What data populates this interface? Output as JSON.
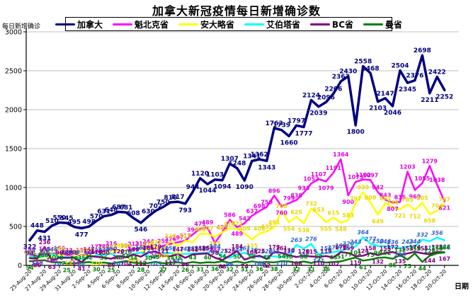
{
  "title": "加拿大新冠疫情每日新增确诊数",
  "y_axis_unit_label": "每日新增确诊",
  "x_axis_title": "日期",
  "chart_data": {
    "type": "line",
    "title": "加拿大新冠疫情每日新增确诊数",
    "xlabel": "日期",
    "ylabel": "每日新增确诊",
    "ylim": [
      0,
      3000
    ],
    "y_ticks": [
      0,
      500,
      1000,
      1500,
      2000,
      2500,
      3000
    ],
    "grid": "horizontal",
    "legend_position": "top",
    "points_note": "57 daily points from 25-Aug-20 to 20-Oct-20; every 2nd point has an x tick label; every point carries a value data label",
    "x_tick_labels": [
      "25-Aug-20",
      "27-Aug-20",
      "29-Aug-20",
      "31-Aug-20",
      "2-Sep-20",
      "4-Sep-20",
      "6-Sep-20",
      "8-Sep-20",
      "10-Sep-20",
      "12-Sep-20",
      "14-Sep-20",
      "16-Sep-20",
      "18-Sep-20",
      "20-Sep-20",
      "22-Sep-20",
      "24-Sep-20",
      "26-Sep-20",
      "28-Sep-20",
      "30-Sep-20",
      "2-Oct-20",
      "4-Oct-20",
      "6-Oct-20",
      "8-Oct-20",
      "10-Oct-20",
      "12-Oct-20",
      "14-Oct-20",
      "16-Oct-20",
      "18-Oct-20",
      "20-Oct-20"
    ],
    "series": [
      {
        "name": "加拿大",
        "color": "#000080",
        "label_color": "#000080",
        "label_style": "normal",
        "line_width": 3.5,
        "label_size": 9,
        "values": [
          322,
          448,
          431,
          510,
          550,
          545,
          495,
          477,
          498,
          570,
          631,
          648,
          687,
          681,
          608,
          546,
          630,
          702,
          750,
          810,
          817,
          793,
          944,
          1120,
          1044,
          1103,
          1094,
          1307,
          1248,
          1090,
          1341,
          1362,
          1343,
          1763,
          1739,
          1660,
          1797,
          1777,
          2124,
          2039,
          2096,
          2206,
          2363,
          2430,
          1800,
          2558,
          2468,
          2103,
          2147,
          2046,
          2504,
          2345,
          2376,
          2698,
          2211,
          2422,
          2252
        ]
      },
      {
        "name": "魁北克省",
        "color": "#FF00FF",
        "label_color": "#E000E0",
        "label_style": "normal",
        "line_width": 2.5,
        "label_size": 8,
        "values": [
          140,
          118,
          150,
          148,
          160,
          133,
          114,
          132,
          147,
          177,
          184,
          216,
          185,
          190,
          213,
          219,
          244,
          214,
          252,
          276,
          297,
          317,
          396,
          471,
          489,
          287,
          427,
          586,
          489,
          542,
          637,
          698,
          750,
          896,
          760,
          799,
          838,
          933,
          1052,
          1107,
          1079,
          1191,
          1364,
          900,
          1073,
          1102,
          1097,
          942,
          843,
          807,
          815,
          1203,
          969,
          1055,
          1279,
          1038,
          821
        ]
      },
      {
        "name": "安大略省",
        "color": "#FFFF00",
        "label_color": "#E8D800",
        "label_style": "normal",
        "line_width": 2.5,
        "label_size": 8,
        "values": [
          105,
          88,
          118,
          122,
          148,
          112,
          114,
          125,
          133,
          110,
          148,
          169,
          190,
          185,
          149,
          170,
          213,
          232,
          204,
          313,
          251,
          315,
          298,
          401,
          407,
          365,
          425,
          478,
          471,
          409,
          335,
          408,
          435,
          491,
          700,
          554,
          625,
          538,
          732,
          653,
          555,
          615,
          548,
          583,
          797,
          939,
          809,
          649,
          801,
          746,
          721,
          783,
          712,
          805,
          658,
          704,
          787
        ]
      },
      {
        "name": "艾伯塔省",
        "color": "#00FFFF",
        "label_color": "#3366CC",
        "label_style": "italic",
        "line_width": 2.5,
        "label_size": 8,
        "values": [
          123,
          102,
          122,
          146,
          107,
          110,
          103,
          85,
          97,
          129,
          139,
          150,
          107,
          110,
          146,
          164,
          122,
          103,
          150,
          158,
          141,
          148,
          153,
          158,
          164,
          184,
          125,
          96,
          143,
          161,
          130,
          108,
          120,
          115,
          110,
          119,
          263,
          215,
          276,
          141,
          156,
          170,
          190,
          220,
          243,
          364,
          277,
          250,
          246,
          236,
          220,
          243,
          244,
          332,
          311,
          356,
          323
        ]
      },
      {
        "name": "BC省",
        "color": "#800080",
        "label_color": "#800080",
        "label_style": "normal",
        "line_width": 2.5,
        "label_size": 8,
        "values": [
          94,
          86,
          236,
          63,
          98,
          98,
          98,
          41,
          121,
          110,
          100,
          85,
          120,
          104,
          139,
          112,
          165,
          179,
          121,
          117,
          147,
          96,
          141,
          148,
          153,
          98,
          68,
          125,
          184,
          74,
          105,
          125,
          82,
          173,
          161,
          130,
          108,
          120,
          115,
          110,
          119,
          102,
          170,
          159,
          119,
          124,
          158,
          132,
          155,
          172,
          135,
          153,
          174,
          155,
          144,
          174,
          167
        ]
      },
      {
        "name": "曼省",
        "color": "#008000",
        "label_color": "#008000",
        "label_style": "normal",
        "line_width": 2.5,
        "label_size": 8,
        "values": [
          54,
          62,
          66,
          40,
          38,
          25,
          28,
          35,
          42,
          30,
          36,
          25,
          40,
          55,
          34,
          28,
          30,
          45,
          27,
          34,
          38,
          26,
          43,
          31,
          40,
          36,
          54,
          32,
          50,
          31,
          52,
          36,
          43,
          38,
          54,
          50,
          32,
          50,
          31,
          52,
          36,
          43,
          51,
          77,
          101,
          61,
          75,
          96,
          102,
          85,
          132,
          75,
          153,
          44,
          124,
          155,
          166
        ]
      }
    ]
  }
}
